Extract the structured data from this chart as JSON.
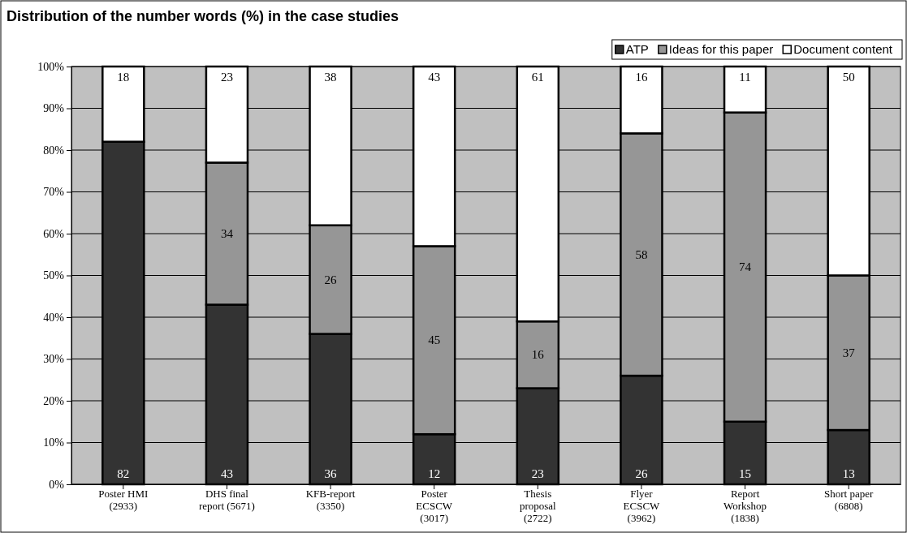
{
  "chart_data": {
    "type": "bar",
    "stacked": true,
    "title": "Distribution of the number words (%)  in the case studies",
    "categories": [
      "Poster HMI\n(2933)",
      "DHS final\nreport (5671)",
      "KFB-report\n(3350)",
      "Poster\nECSCW\n(3017)",
      "Thesis\nproposal\n(2722)",
      "Flyer\nECSCW\n(3962)",
      "Report\nWorkshop\n(1838)",
      "Short paper\n(6808)"
    ],
    "series": [
      {
        "name": "ATP",
        "color": "#333333",
        "values": [
          82,
          43,
          36,
          12,
          23,
          26,
          15,
          13
        ],
        "value_labels": [
          "82",
          "43",
          "36",
          "12",
          "23",
          "26",
          "15",
          "13"
        ]
      },
      {
        "name": "Ideas for this paper",
        "color": "#969696",
        "values": [
          0,
          34,
          26,
          45,
          16,
          58,
          74,
          37
        ],
        "value_labels": [
          null,
          "34",
          "26",
          "45",
          "16",
          "58",
          "74",
          "37"
        ]
      },
      {
        "name": "Document content",
        "color": "#ffffff",
        "values": [
          18,
          23,
          38,
          43,
          61,
          16,
          11,
          50
        ],
        "value_labels": [
          "18",
          "23",
          "38",
          "43",
          "61",
          "16",
          "11",
          "50"
        ]
      }
    ],
    "ylim": [
      0,
      100
    ],
    "yticks": [
      {
        "value": 0,
        "label": "0%"
      },
      {
        "value": 10,
        "label": "10%"
      },
      {
        "value": 20,
        "label": "20%"
      },
      {
        "value": 30,
        "label": "30%"
      },
      {
        "value": 40,
        "label": "40%"
      },
      {
        "value": 50,
        "label": "50%"
      },
      {
        "value": 60,
        "label": "60%"
      },
      {
        "value": 70,
        "label": "70%"
      },
      {
        "value": 80,
        "label": "80%"
      },
      {
        "value": 90,
        "label": "90%"
      },
      {
        "value": 100,
        "label": "100%"
      }
    ],
    "grid": "y",
    "legend": "top right"
  }
}
